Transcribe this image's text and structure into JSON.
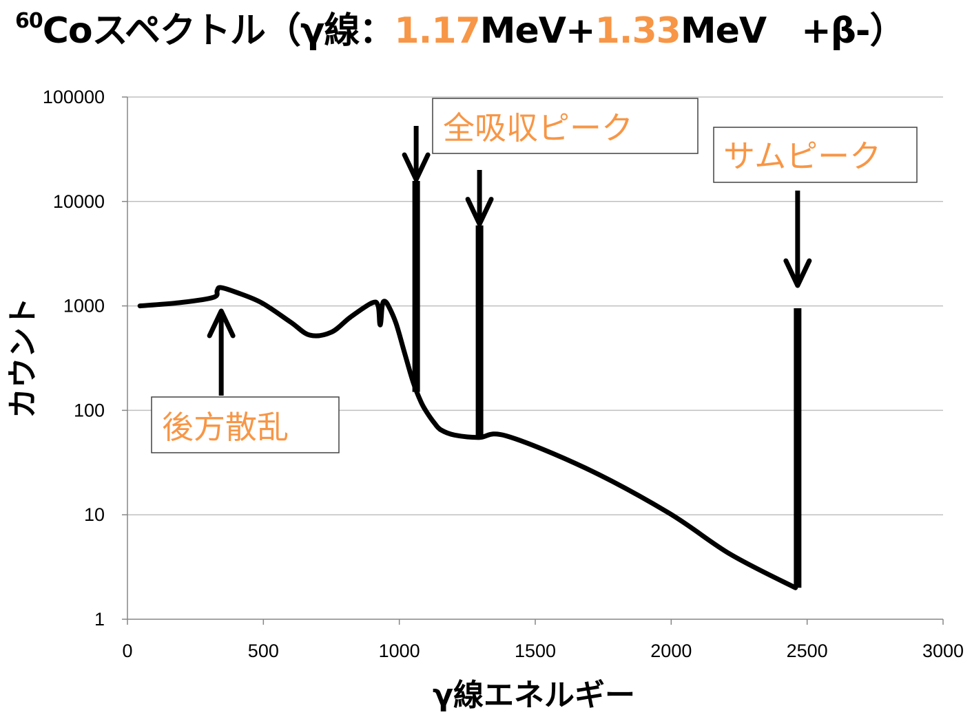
{
  "title": {
    "sup": "60",
    "prefix": "Coスペクトル（γ線：",
    "e1": "1.17",
    "mid": "MeV+",
    "e2": "1.33",
    "suffix": "MeV　+β-）"
  },
  "colors": {
    "accent": "#f79646",
    "line": "#000000",
    "grid": "#bfbfbf"
  },
  "chart_data": {
    "type": "line",
    "title": "60Coスペクトル（γ線：1.17MeV+1.33MeV　+β-）",
    "xlabel": "γ線エネルギー",
    "ylabel": "カウント",
    "xlim": [
      0,
      3000
    ],
    "ylim": [
      1,
      100000
    ],
    "yscale": "log",
    "grid": "horizontal",
    "xticks": [
      "0",
      "500",
      "1000",
      "1500",
      "2000",
      "2500",
      "3000"
    ],
    "xtick_values": [
      0,
      500,
      1000,
      1500,
      2000,
      2500,
      3000
    ],
    "yticks": [
      "1",
      "10",
      "100",
      "1000",
      "10000",
      "100000"
    ],
    "ytick_values": [
      1,
      10,
      100,
      1000,
      10000,
      100000
    ],
    "series": [
      {
        "name": "spectrum",
        "x": [
          46,
          200,
          317,
          330,
          342,
          400,
          494,
          600,
          671,
          750,
          820,
          900,
          922,
          928,
          932,
          937,
          945,
          960,
          988,
          1020,
          1051,
          1080,
          1102,
          1130,
          1153,
          1203,
          1292,
          1393,
          1685,
          1989,
          2217,
          2457
        ],
        "y": [
          1000,
          1080,
          1210,
          1400,
          1500,
          1350,
          1070,
          700,
          525,
          560,
          780,
          1070,
          1000,
          680,
          700,
          1000,
          1110,
          1000,
          680,
          350,
          186,
          120,
          95,
          75,
          65,
          58,
          55,
          57,
          28,
          10.5,
          4.2,
          2
        ]
      }
    ],
    "peaks": [
      {
        "x": 1062,
        "top": 15700,
        "bottom": 150
      },
      {
        "x": 1295,
        "top": 5900,
        "bottom": 55
      },
      {
        "x": 2465,
        "top": 950,
        "bottom": 2
      }
    ],
    "annotations": [
      {
        "text": "全吸収ピーク",
        "arrows_to": [
          1062,
          1295
        ]
      },
      {
        "text": "サムピーク",
        "arrows_to": [
          2465
        ]
      },
      {
        "text": "後方散乱",
        "arrows_to": [
          345
        ]
      }
    ]
  }
}
